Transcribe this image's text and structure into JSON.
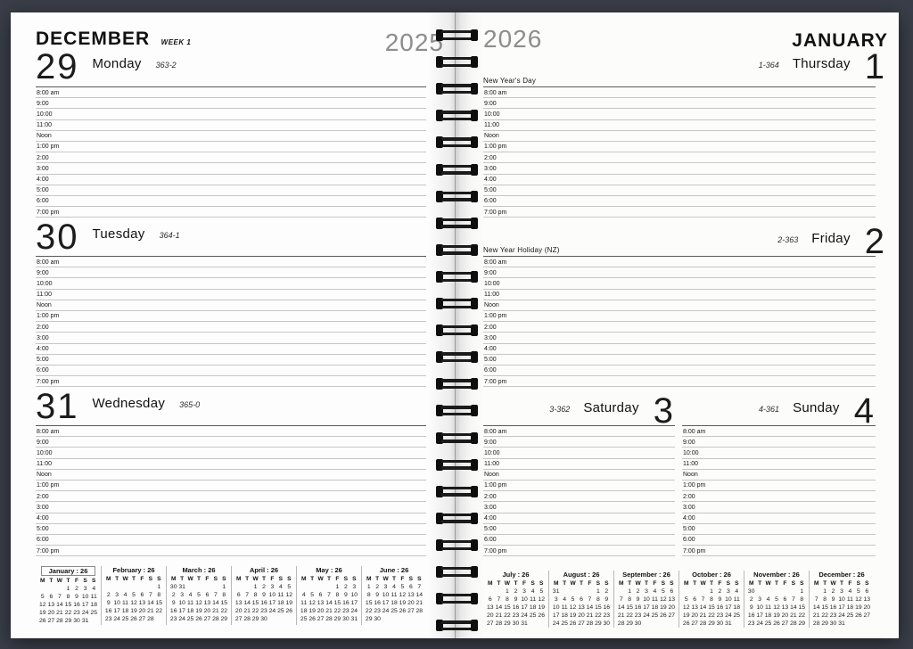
{
  "left_page": {
    "month_label": "DECEMBER",
    "week_label": "WEEK 1",
    "year_label": "2025",
    "days": [
      {
        "number": "29",
        "weekday": "Monday",
        "day_of_year": "363-2"
      },
      {
        "number": "30",
        "weekday": "Tuesday",
        "day_of_year": "364-1"
      },
      {
        "number": "31",
        "weekday": "Wednesday",
        "day_of_year": "365-0"
      }
    ],
    "mini_calendars": [
      {
        "title": "January : 26",
        "highlighted": true,
        "weeks": [
          [
            "",
            "",
            "",
            "1",
            "2",
            "3",
            "4"
          ],
          [
            "5",
            "6",
            "7",
            "8",
            "9",
            "10",
            "11"
          ],
          [
            "12",
            "13",
            "14",
            "15",
            "16",
            "17",
            "18"
          ],
          [
            "19",
            "20",
            "21",
            "22",
            "23",
            "24",
            "25"
          ],
          [
            "26",
            "27",
            "28",
            "29",
            "30",
            "31",
            ""
          ]
        ]
      },
      {
        "title": "February : 26",
        "highlighted": false,
        "weeks": [
          [
            "",
            "",
            "",
            "",
            "",
            "",
            "1"
          ],
          [
            "2",
            "3",
            "4",
            "5",
            "6",
            "7",
            "8"
          ],
          [
            "9",
            "10",
            "11",
            "12",
            "13",
            "14",
            "15"
          ],
          [
            "16",
            "17",
            "18",
            "19",
            "20",
            "21",
            "22"
          ],
          [
            "23",
            "24",
            "25",
            "26",
            "27",
            "28",
            ""
          ]
        ]
      },
      {
        "title": "March : 26",
        "highlighted": false,
        "weeks": [
          [
            "30",
            "31",
            "",
            "",
            "",
            "",
            "1"
          ],
          [
            "2",
            "3",
            "4",
            "5",
            "6",
            "7",
            "8"
          ],
          [
            "9",
            "10",
            "11",
            "12",
            "13",
            "14",
            "15"
          ],
          [
            "16",
            "17",
            "18",
            "19",
            "20",
            "21",
            "22"
          ],
          [
            "23",
            "24",
            "25",
            "26",
            "27",
            "28",
            "29"
          ]
        ]
      },
      {
        "title": "April : 26",
        "highlighted": false,
        "weeks": [
          [
            "",
            "",
            "1",
            "2",
            "3",
            "4",
            "5"
          ],
          [
            "6",
            "7",
            "8",
            "9",
            "10",
            "11",
            "12"
          ],
          [
            "13",
            "14",
            "15",
            "16",
            "17",
            "18",
            "19"
          ],
          [
            "20",
            "21",
            "22",
            "23",
            "24",
            "25",
            "26"
          ],
          [
            "27",
            "28",
            "29",
            "30",
            "",
            "",
            ""
          ]
        ]
      },
      {
        "title": "May : 26",
        "highlighted": false,
        "weeks": [
          [
            "",
            "",
            "",
            "",
            "1",
            "2",
            "3"
          ],
          [
            "4",
            "5",
            "6",
            "7",
            "8",
            "9",
            "10"
          ],
          [
            "11",
            "12",
            "13",
            "14",
            "15",
            "16",
            "17"
          ],
          [
            "18",
            "19",
            "20",
            "21",
            "22",
            "23",
            "24"
          ],
          [
            "25",
            "26",
            "27",
            "28",
            "29",
            "30",
            "31"
          ]
        ]
      },
      {
        "title": "June : 26",
        "highlighted": false,
        "weeks": [
          [
            "1",
            "2",
            "3",
            "4",
            "5",
            "6",
            "7"
          ],
          [
            "8",
            "9",
            "10",
            "11",
            "12",
            "13",
            "14"
          ],
          [
            "15",
            "16",
            "17",
            "18",
            "19",
            "20",
            "21"
          ],
          [
            "22",
            "23",
            "24",
            "25",
            "26",
            "27",
            "28"
          ],
          [
            "29",
            "30",
            "",
            "",
            "",
            "",
            ""
          ]
        ]
      }
    ]
  },
  "right_page": {
    "year_label": "2026",
    "month_label": "JANUARY",
    "days": [
      {
        "number": "1",
        "weekday": "Thursday",
        "day_of_year": "1-364",
        "holiday": "New Year's Day"
      },
      {
        "number": "2",
        "weekday": "Friday",
        "day_of_year": "2-363",
        "holiday": "New Year Holiday (NZ)"
      },
      {
        "number": "3",
        "weekday": "Saturday",
        "day_of_year": "3-362"
      },
      {
        "number": "4",
        "weekday": "Sunday",
        "day_of_year": "4-361"
      }
    ],
    "mini_calendars": [
      {
        "title": "July : 26",
        "highlighted": false,
        "weeks": [
          [
            "",
            "",
            "1",
            "2",
            "3",
            "4",
            "5"
          ],
          [
            "6",
            "7",
            "8",
            "9",
            "10",
            "11",
            "12"
          ],
          [
            "13",
            "14",
            "15",
            "16",
            "17",
            "18",
            "19"
          ],
          [
            "20",
            "21",
            "22",
            "23",
            "24",
            "25",
            "26"
          ],
          [
            "27",
            "28",
            "29",
            "30",
            "31",
            "",
            ""
          ]
        ]
      },
      {
        "title": "August : 26",
        "highlighted": false,
        "weeks": [
          [
            "31",
            "",
            "",
            "",
            "",
            "1",
            "2"
          ],
          [
            "3",
            "4",
            "5",
            "6",
            "7",
            "8",
            "9"
          ],
          [
            "10",
            "11",
            "12",
            "13",
            "14",
            "15",
            "16"
          ],
          [
            "17",
            "18",
            "19",
            "20",
            "21",
            "22",
            "23"
          ],
          [
            "24",
            "25",
            "26",
            "27",
            "28",
            "29",
            "30"
          ]
        ]
      },
      {
        "title": "September : 26",
        "highlighted": false,
        "weeks": [
          [
            "",
            "1",
            "2",
            "3",
            "4",
            "5",
            "6"
          ],
          [
            "7",
            "8",
            "9",
            "10",
            "11",
            "12",
            "13"
          ],
          [
            "14",
            "15",
            "16",
            "17",
            "18",
            "19",
            "20"
          ],
          [
            "21",
            "22",
            "23",
            "24",
            "25",
            "26",
            "27"
          ],
          [
            "28",
            "29",
            "30",
            "",
            "",
            "",
            ""
          ]
        ]
      },
      {
        "title": "October : 26",
        "highlighted": false,
        "weeks": [
          [
            "",
            "",
            "",
            "1",
            "2",
            "3",
            "4"
          ],
          [
            "5",
            "6",
            "7",
            "8",
            "9",
            "10",
            "11"
          ],
          [
            "12",
            "13",
            "14",
            "15",
            "16",
            "17",
            "18"
          ],
          [
            "19",
            "20",
            "21",
            "22",
            "23",
            "24",
            "25"
          ],
          [
            "26",
            "27",
            "28",
            "29",
            "30",
            "31",
            ""
          ]
        ]
      },
      {
        "title": "November : 26",
        "highlighted": false,
        "weeks": [
          [
            "30",
            "",
            "",
            "",
            "",
            "",
            "1"
          ],
          [
            "2",
            "3",
            "4",
            "5",
            "6",
            "7",
            "8"
          ],
          [
            "9",
            "10",
            "11",
            "12",
            "13",
            "14",
            "15"
          ],
          [
            "16",
            "17",
            "18",
            "19",
            "20",
            "21",
            "22"
          ],
          [
            "23",
            "24",
            "25",
            "26",
            "27",
            "28",
            "29"
          ]
        ]
      },
      {
        "title": "December : 26",
        "highlighted": false,
        "weeks": [
          [
            "",
            "1",
            "2",
            "3",
            "4",
            "5",
            "6"
          ],
          [
            "7",
            "8",
            "9",
            "10",
            "11",
            "12",
            "13"
          ],
          [
            "14",
            "15",
            "16",
            "17",
            "18",
            "19",
            "20"
          ],
          [
            "21",
            "22",
            "23",
            "24",
            "25",
            "26",
            "27"
          ],
          [
            "28",
            "29",
            "30",
            "31",
            "",
            "",
            ""
          ]
        ]
      }
    ]
  },
  "time_slots": [
    "8:00 am",
    "9:00",
    "10:00",
    "11:00",
    "Noon",
    "1:00 pm",
    "2:00",
    "3:00",
    "4:00",
    "5:00",
    "6:00",
    "7:00 pm"
  ],
  "weekday_header": [
    "M",
    "T",
    "W",
    "T",
    "F",
    "S",
    "S"
  ],
  "binding": {
    "loops": 23
  },
  "colors": {
    "background": "#3a3e48",
    "page": "#fdfdfd",
    "year_gray": "#8d8d8d",
    "grid_top_line": "#5a5a5a",
    "slot_line": "#c6c6c6"
  }
}
